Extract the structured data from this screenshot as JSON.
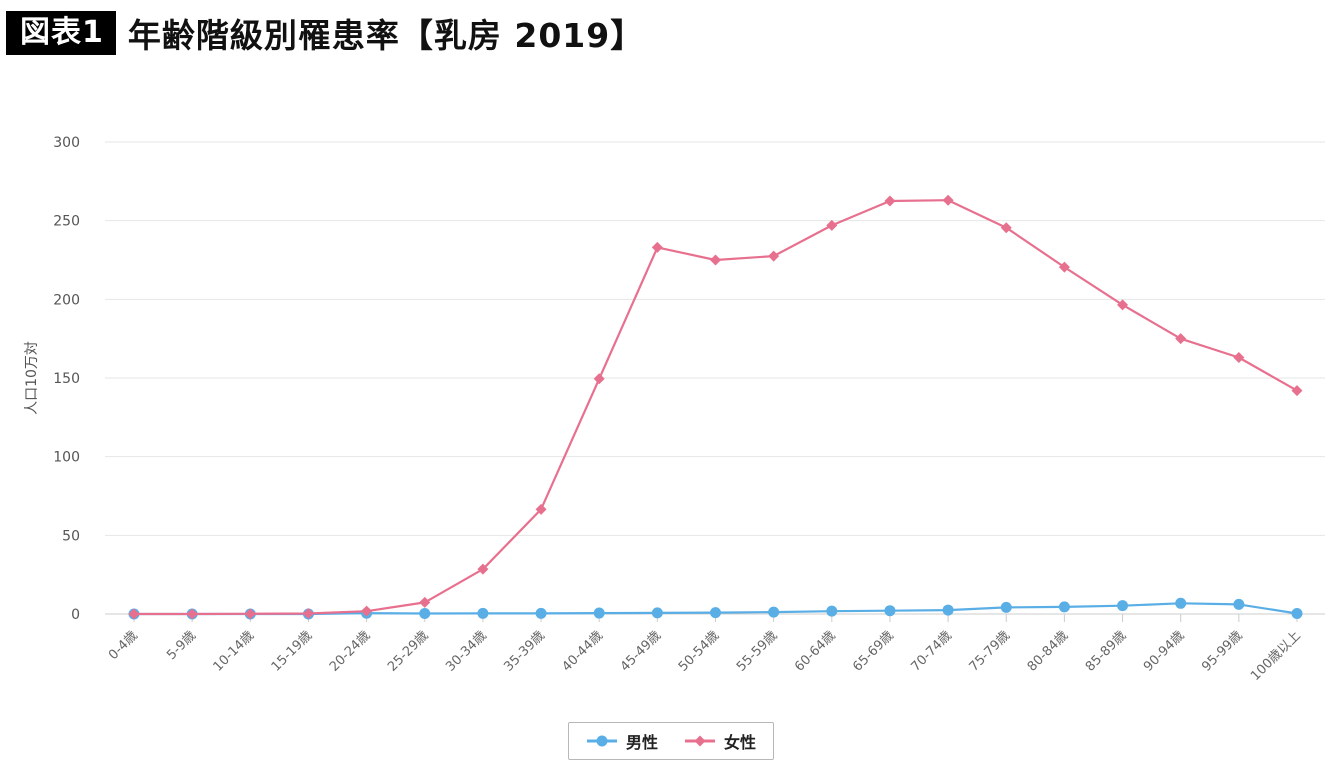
{
  "header": {
    "label": "図表1",
    "title": "年齢階級別罹患率【乳房 2019】"
  },
  "chart_data": {
    "type": "line",
    "ylabel": "人口10万対",
    "xlabel": "",
    "ylim": [
      0,
      300
    ],
    "y_ticks": [
      0,
      50,
      100,
      150,
      200,
      250,
      300
    ],
    "grid": true,
    "legend_position": "bottom",
    "categories": [
      "0-4歳",
      "5-9歳",
      "10-14歳",
      "15-19歳",
      "20-24歳",
      "25-29歳",
      "30-34歳",
      "35-39歳",
      "40-44歳",
      "45-49歳",
      "50-54歳",
      "55-59歳",
      "60-64歳",
      "65-69歳",
      "70-74歳",
      "75-79歳",
      "80-84歳",
      "85-89歳",
      "90-94歳",
      "95-99歳",
      "100歳以上"
    ],
    "series": [
      {
        "name": "男性",
        "color": "#5aaee6",
        "marker": "circle",
        "values": [
          0,
          0,
          0,
          0,
          0.5,
          0.3,
          0.4,
          0.4,
          0.6,
          0.7,
          0.9,
          1.2,
          1.8,
          2.1,
          2.5,
          4.2,
          4.5,
          5.3,
          6.8,
          6.1,
          0.3
        ]
      },
      {
        "name": "女性",
        "color": "#e8708f",
        "marker": "diamond",
        "values": [
          0,
          0,
          0.1,
          0.3,
          1.8,
          7.4,
          28.5,
          66.5,
          149.5,
          233.0,
          225.0,
          227.5,
          247.0,
          262.5,
          263.0,
          245.5,
          220.5,
          196.5,
          175.0,
          163.0,
          142.0
        ]
      }
    ]
  }
}
